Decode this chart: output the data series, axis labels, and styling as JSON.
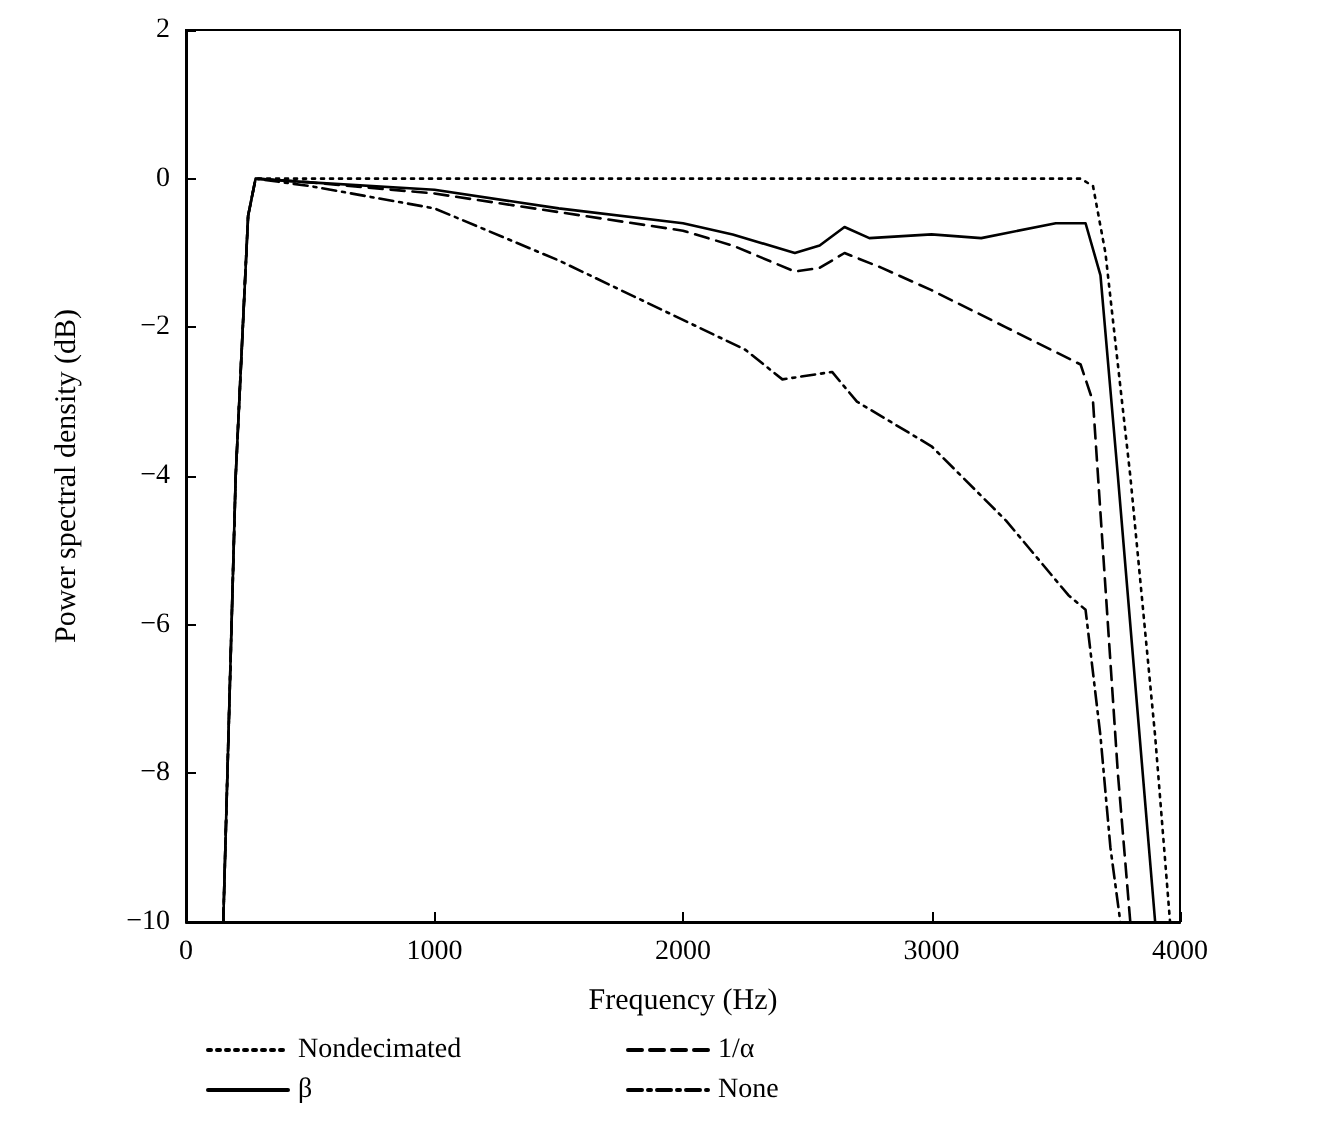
{
  "chart_data": {
    "type": "line",
    "xlabel": "Frequency (Hz)",
    "ylabel": "Power spectral density (dB)",
    "xlim": [
      0,
      4000
    ],
    "xticks": [
      0,
      1000,
      2000,
      3000,
      4000
    ],
    "ylim": [
      -10,
      2
    ],
    "yticks": [
      {
        "value": -10,
        "label": "−10"
      },
      {
        "value": -8,
        "label": "−8"
      },
      {
        "value": -6,
        "label": "−6"
      },
      {
        "value": -4,
        "label": "−4"
      },
      {
        "value": -2,
        "label": "−2"
      },
      0,
      2
    ],
    "grid": false,
    "legend": "bottom",
    "marker": "none",
    "series": [
      {
        "name": "Nondecimated",
        "color": "#000000",
        "line_style": "dotted",
        "x": [
          150,
          200,
          250,
          280,
          1000,
          2000,
          3000,
          3600,
          3650,
          3700,
          3800,
          3900,
          3960
        ],
        "values": [
          -10,
          -4,
          -0.5,
          0,
          0,
          0,
          0,
          0,
          -0.1,
          -1.0,
          -4,
          -7.5,
          -10
        ]
      },
      {
        "name": "1/α",
        "color": "#000000",
        "line_style": "dashed",
        "x": [
          150,
          200,
          250,
          280,
          500,
          1000,
          1500,
          2000,
          2200,
          2450,
          2550,
          2650,
          2800,
          3000,
          3300,
          3600,
          3650,
          3700,
          3750,
          3800
        ],
        "values": [
          -10,
          -4,
          -0.5,
          0,
          -0.05,
          -0.2,
          -0.45,
          -0.7,
          -0.9,
          -1.25,
          -1.2,
          -1.0,
          -1.2,
          -1.5,
          -2.0,
          -2.5,
          -3.0,
          -5.5,
          -8,
          -10
        ]
      },
      {
        "name": "β",
        "color": "#000000",
        "line_style": "solid",
        "x": [
          150,
          200,
          250,
          280,
          500,
          1000,
          1500,
          2000,
          2200,
          2450,
          2550,
          2650,
          2750,
          3000,
          3200,
          3500,
          3620,
          3680,
          3750,
          3850,
          3900
        ],
        "values": [
          -10,
          -4,
          -0.5,
          0,
          -0.05,
          -0.15,
          -0.4,
          -0.6,
          -0.75,
          -1.0,
          -0.9,
          -0.65,
          -0.8,
          -0.75,
          -0.8,
          -0.6,
          -0.6,
          -1.3,
          -4,
          -8,
          -10
        ]
      },
      {
        "name": "None",
        "color": "#000000",
        "line_style": "dashdot",
        "x": [
          150,
          200,
          250,
          280,
          500,
          1000,
          1500,
          2000,
          2250,
          2400,
          2600,
          2700,
          3000,
          3300,
          3550,
          3620,
          3680,
          3720,
          3760
        ],
        "values": [
          -10,
          -4,
          -0.5,
          0,
          -0.1,
          -0.4,
          -1.1,
          -1.9,
          -2.3,
          -2.7,
          -2.6,
          -3.0,
          -3.6,
          -4.6,
          -5.6,
          -5.8,
          -7.5,
          -9,
          -10
        ]
      }
    ]
  }
}
